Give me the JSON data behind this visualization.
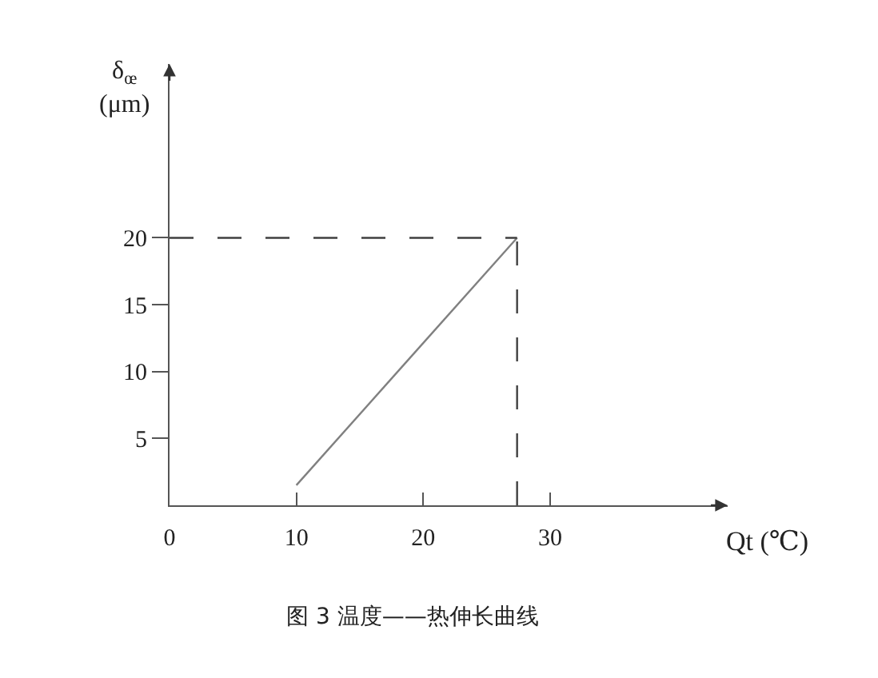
{
  "chart_data": {
    "type": "line",
    "title": "图 3 温度——热伸长曲线",
    "xlabel": "Qt (℃)",
    "ylabel": "δ$_{œ}$\n(μm)",
    "x": [
      10,
      27.4
    ],
    "series": [
      {
        "color": "#808080",
        "values": [
          1.5,
          20
        ]
      }
    ],
    "xlim": [
      0,
      44
    ],
    "ylim": [
      0,
      33
    ],
    "xticks": [
      0,
      10,
      20,
      30
    ],
    "yticks": [
      5,
      10,
      15,
      20
    ],
    "ref_lines": [
      {
        "axis": "y",
        "value": 20,
        "color": "#404040",
        "line_style": "dashed"
      },
      {
        "axis": "x",
        "value": 27.4,
        "color": "#404040",
        "line_style": "dashed"
      }
    ],
    "marker": "none",
    "line_style": "solid"
  }
}
